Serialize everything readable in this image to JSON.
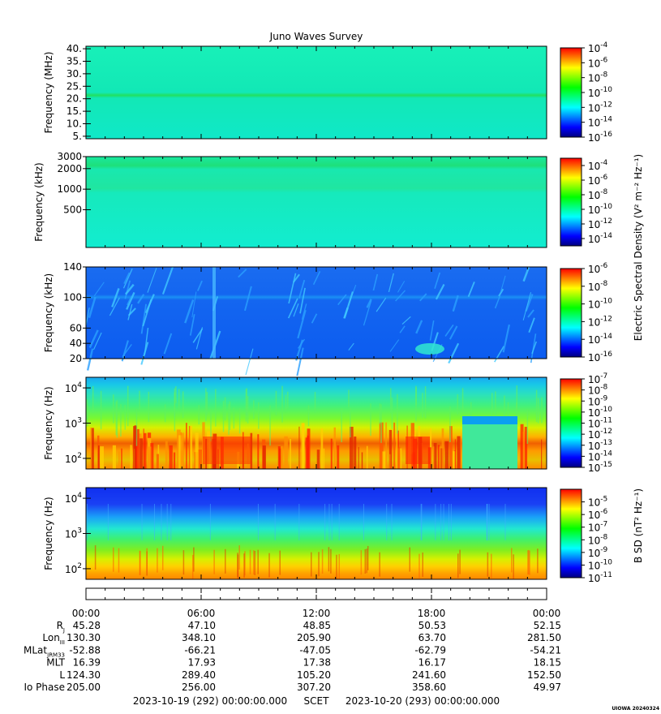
{
  "title": "Juno Waves Survey",
  "credit": "UIOWA 20240324",
  "colors": {
    "colormap": [
      "#00007f",
      "#0000ff",
      "#0080ff",
      "#00ffff",
      "#00ff80",
      "#00ff00",
      "#80ff00",
      "#ffff00",
      "#ff8000",
      "#ff0000"
    ]
  },
  "chart_data": [
    {
      "type": "heatmap",
      "panel": 1,
      "ylabel": "Frequency (MHz)",
      "yticks": [
        "40.",
        "35.",
        "30.",
        "25.",
        "20.",
        "15.",
        "10.",
        "5."
      ],
      "ylim": [
        4,
        41
      ],
      "colorbar": {
        "min_exp": -16,
        "max_exp": -4,
        "ticks": [
          {
            "b": "10",
            "e": "-4"
          },
          {
            "b": "10",
            "e": "-6"
          },
          {
            "b": "10",
            "e": "-8"
          },
          {
            "b": "10",
            "e": "-10"
          },
          {
            "b": "10",
            "e": "-12"
          },
          {
            "b": "10",
            "e": "-14"
          },
          {
            "b": "10",
            "e": "-16"
          }
        ]
      }
    },
    {
      "type": "heatmap",
      "panel": 2,
      "ylabel": "Frequency (kHz)",
      "yticks": [
        "3000",
        "2000",
        "1000",
        "500"
      ],
      "ylim": [
        140,
        3000
      ],
      "colorbar": {
        "min_exp": -15,
        "max_exp": -3,
        "ticks": [
          {
            "b": "10",
            "e": "-4"
          },
          {
            "b": "10",
            "e": "-6"
          },
          {
            "b": "10",
            "e": "-8"
          },
          {
            "b": "10",
            "e": "-10"
          },
          {
            "b": "10",
            "e": "-12"
          },
          {
            "b": "10",
            "e": "-14"
          }
        ]
      }
    },
    {
      "type": "heatmap",
      "panel": 3,
      "ylabel": "Frequency (kHz)",
      "yticks": [
        "140",
        "100",
        "60",
        "40",
        "20"
      ],
      "ylim": [
        20,
        140
      ],
      "colorbar": {
        "min_exp": -16,
        "max_exp": -6,
        "ticks": [
          {
            "b": "10",
            "e": "-6"
          },
          {
            "b": "10",
            "e": "-8"
          },
          {
            "b": "10",
            "e": "-10"
          },
          {
            "b": "10",
            "e": "-12"
          },
          {
            "b": "10",
            "e": "-14"
          },
          {
            "b": "10",
            "e": "-16"
          }
        ]
      }
    },
    {
      "type": "heatmap",
      "panel": 4,
      "ylabel": "Frequency (Hz)",
      "yticks": [
        {
          "b": "10",
          "e": "4"
        },
        {
          "b": "10",
          "e": "3"
        },
        {
          "b": "10",
          "e": "2"
        }
      ],
      "ylim": [
        50,
        20000
      ],
      "colorbar": {
        "min_exp": -15,
        "max_exp": -7,
        "ticks": [
          {
            "b": "10",
            "e": "-7"
          },
          {
            "b": "10",
            "e": "-8"
          },
          {
            "b": "10",
            "e": "-9"
          },
          {
            "b": "10",
            "e": "-10"
          },
          {
            "b": "10",
            "e": "-11"
          },
          {
            "b": "10",
            "e": "-12"
          },
          {
            "b": "10",
            "e": "-13"
          },
          {
            "b": "10",
            "e": "-14"
          },
          {
            "b": "10",
            "e": "-15"
          }
        ]
      }
    },
    {
      "type": "heatmap",
      "panel": 5,
      "ylabel": "Frequency (Hz)",
      "yticks": [
        {
          "b": "10",
          "e": "4"
        },
        {
          "b": "10",
          "e": "3"
        },
        {
          "b": "10",
          "e": "2"
        }
      ],
      "ylim": [
        50,
        20000
      ],
      "colorbar": {
        "min_exp": -11,
        "max_exp": -4,
        "ticks": [
          {
            "b": "10",
            "e": "-5"
          },
          {
            "b": "10",
            "e": "-6"
          },
          {
            "b": "10",
            "e": "-7"
          },
          {
            "b": "10",
            "e": "-8"
          },
          {
            "b": "10",
            "e": "-9"
          },
          {
            "b": "10",
            "e": "-10"
          },
          {
            "b": "10",
            "e": "-11"
          }
        ]
      }
    }
  ],
  "colorbar_labels": {
    "electric": "Electric Spectral Density (V² m⁻² Hz⁻¹)",
    "magnetic": "B SD (nT² Hz⁻¹)"
  },
  "x_axis": {
    "times": [
      "00:00",
      "06:00",
      "12:00",
      "18:00",
      "00:00"
    ],
    "ephemeris": [
      {
        "label": "R",
        "sub": "J",
        "values": [
          "45.28",
          "47.10",
          "48.85",
          "50.53",
          "52.15"
        ]
      },
      {
        "label": "Lon",
        "sub": "III",
        "values": [
          "130.30",
          "348.10",
          "205.90",
          "63.70",
          "281.50"
        ]
      },
      {
        "label": "MLat",
        "sub": "JRM33",
        "values": [
          "-52.88",
          "-66.21",
          "-47.05",
          "-62.79",
          "-54.21"
        ]
      },
      {
        "label": "MLT",
        "sub": "",
        "values": [
          "16.39",
          "17.93",
          "17.38",
          "16.17",
          "18.15"
        ]
      },
      {
        "label": "L",
        "sub": "",
        "values": [
          "124.30",
          "289.40",
          "105.20",
          "241.60",
          "152.50"
        ]
      },
      {
        "label": "Io Phase",
        "sub": "",
        "values": [
          "205.00",
          "256.00",
          "307.20",
          "358.60",
          "49.97"
        ]
      }
    ],
    "start": "2023-10-19 (292) 00:00:00.000",
    "scet": "SCET",
    "end": "2023-10-20 (293) 00:00:00.000"
  }
}
